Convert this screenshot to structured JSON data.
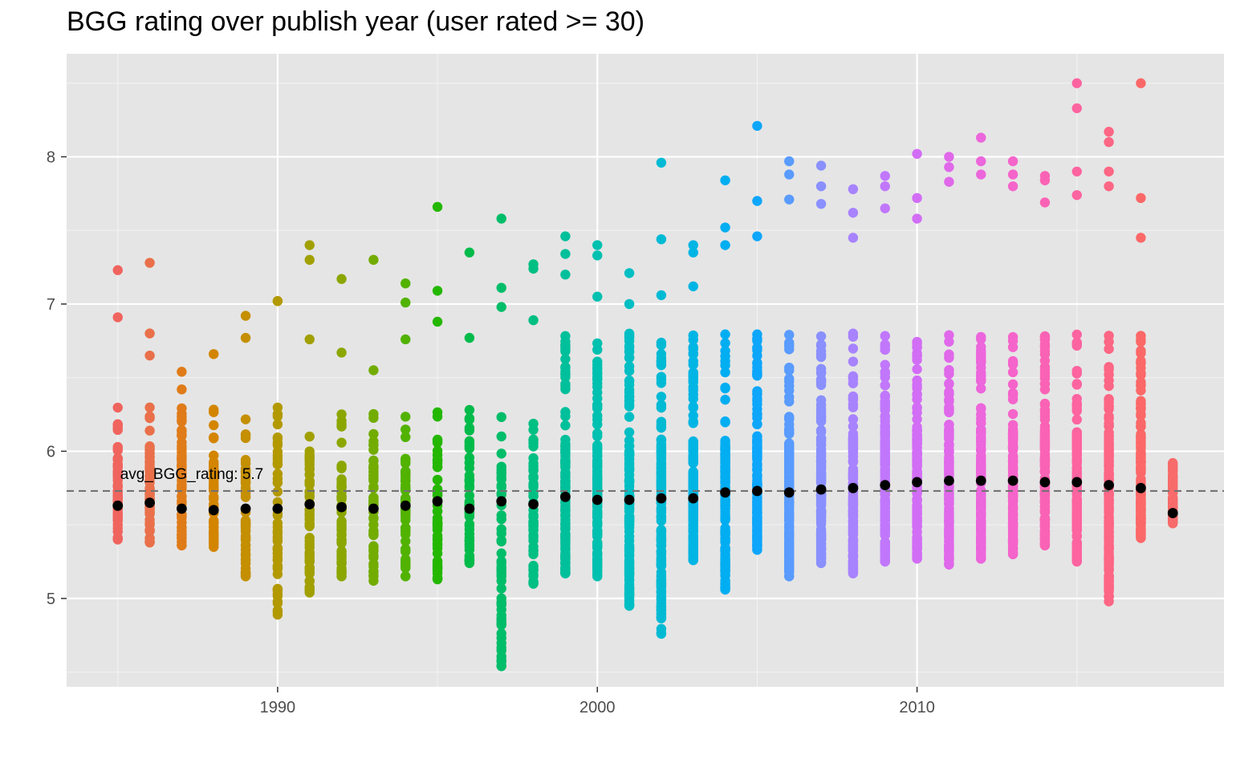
{
  "chart_data": {
    "type": "scatter",
    "title": "BGG rating over publish year (user rated >= 30)",
    "xlabel": "",
    "ylabel": "",
    "xlim": [
      1983.4,
      2019.6
    ],
    "ylim": [
      4.4,
      8.7
    ],
    "x_ticks": [
      1990,
      2000,
      2010
    ],
    "y_ticks": [
      5,
      6,
      7,
      8
    ],
    "grid": true,
    "background": "#e5e5e5",
    "reference_line": {
      "y": 5.73,
      "style": "dashed",
      "color": "#737373"
    },
    "annotation": {
      "text": "avg_BGG_rating:  5.7",
      "x": 1985,
      "y": 5.85
    },
    "years": [
      1985,
      1986,
      1987,
      1988,
      1989,
      1990,
      1991,
      1992,
      1993,
      1994,
      1995,
      1996,
      1997,
      1998,
      1999,
      2000,
      2001,
      2002,
      2003,
      2004,
      2005,
      2006,
      2007,
      2008,
      2009,
      2010,
      2011,
      2012,
      2013,
      2014,
      2015,
      2016,
      2017,
      2018
    ],
    "colors": [
      "#f0645e",
      "#e9704a",
      "#df7b18",
      "#d38500",
      "#c48f00",
      "#b39900",
      "#a1a000",
      "#8ca600",
      "#72ac00",
      "#52b200",
      "#24b700",
      "#00bb4a",
      "#00bd69",
      "#00bf83",
      "#00c09b",
      "#00c0b0",
      "#00bec3",
      "#00bad4",
      "#00b5e4",
      "#00aef1",
      "#0da6fb",
      "#599bff",
      "#8a90ff",
      "#a883ff",
      "#c177fc",
      "#d26df5",
      "#e068ea",
      "#ec66dc",
      "#f564ca",
      "#fa63b5",
      "#fd64a0",
      "#fd6684",
      "#fc6868",
      "#f86b6b"
    ],
    "yearly_avg": [
      5.63,
      5.65,
      5.61,
      5.6,
      5.61,
      5.61,
      5.64,
      5.62,
      5.61,
      5.63,
      5.66,
      5.61,
      5.66,
      5.64,
      5.69,
      5.67,
      5.67,
      5.68,
      5.68,
      5.72,
      5.73,
      5.72,
      5.74,
      5.75,
      5.77,
      5.79,
      5.8,
      5.8,
      5.8,
      5.79,
      5.79,
      5.77,
      5.75,
      5.58
    ],
    "yearly_range": [
      [
        5.4,
        7.23
      ],
      [
        5.38,
        7.28
      ],
      [
        5.36,
        6.54
      ],
      [
        5.35,
        6.66
      ],
      [
        5.15,
        6.92
      ],
      [
        4.89,
        7.02
      ],
      [
        5.04,
        7.4
      ],
      [
        5.15,
        7.17
      ],
      [
        5.12,
        7.3
      ],
      [
        5.15,
        7.14
      ],
      [
        5.13,
        7.66
      ],
      [
        5.24,
        7.35
      ],
      [
        4.54,
        7.58
      ],
      [
        5.1,
        7.27
      ],
      [
        5.17,
        7.46
      ],
      [
        5.15,
        7.4
      ],
      [
        4.95,
        7.21
      ],
      [
        4.76,
        7.96
      ],
      [
        5.26,
        7.4
      ],
      [
        5.06,
        7.84
      ],
      [
        5.33,
        8.21
      ],
      [
        5.15,
        7.97
      ],
      [
        5.24,
        7.94
      ],
      [
        5.17,
        7.78
      ],
      [
        5.25,
        7.87
      ],
      [
        5.27,
        8.02
      ],
      [
        5.23,
        8.0
      ],
      [
        5.27,
        8.13
      ],
      [
        5.3,
        7.97
      ],
      [
        5.36,
        7.87
      ],
      [
        5.25,
        8.5
      ],
      [
        4.98,
        8.17
      ],
      [
        5.41,
        8.5
      ],
      [
        5.51,
        5.92
      ]
    ],
    "outlier_points": [
      [
        1985,
        6.91
      ],
      [
        1986,
        6.8
      ],
      [
        1986,
        6.65
      ],
      [
        1987,
        6.42
      ],
      [
        1989,
        6.77
      ],
      [
        1990,
        7.02
      ],
      [
        1990,
        5.03
      ],
      [
        1991,
        6.76
      ],
      [
        1991,
        7.3
      ],
      [
        1992,
        6.67
      ],
      [
        1993,
        6.55
      ],
      [
        1994,
        6.76
      ],
      [
        1994,
        7.01
      ],
      [
        1995,
        7.09
      ],
      [
        1995,
        6.88
      ],
      [
        1996,
        6.77
      ],
      [
        1997,
        7.11
      ],
      [
        1997,
        6.98
      ],
      [
        1998,
        6.89
      ],
      [
        1998,
        7.24
      ],
      [
        1999,
        7.34
      ],
      [
        1999,
        7.2
      ],
      [
        2000,
        7.33
      ],
      [
        2000,
        7.05
      ],
      [
        2001,
        7.0
      ],
      [
        2001,
        5.16
      ],
      [
        2002,
        7.44
      ],
      [
        2002,
        7.06
      ],
      [
        2002,
        5.1
      ],
      [
        2003,
        7.35
      ],
      [
        2003,
        7.12
      ],
      [
        2004,
        7.52
      ],
      [
        2004,
        7.4
      ],
      [
        2005,
        7.7
      ],
      [
        2005,
        7.46
      ],
      [
        2006,
        7.88
      ],
      [
        2006,
        7.71
      ],
      [
        2007,
        7.8
      ],
      [
        2007,
        7.68
      ],
      [
        2008,
        7.62
      ],
      [
        2008,
        7.45
      ],
      [
        2009,
        7.65
      ],
      [
        2009,
        7.8
      ],
      [
        2010,
        7.72
      ],
      [
        2010,
        7.58
      ],
      [
        2011,
        7.93
      ],
      [
        2011,
        7.83
      ],
      [
        2012,
        7.97
      ],
      [
        2012,
        7.88
      ],
      [
        2013,
        7.88
      ],
      [
        2013,
        7.8
      ],
      [
        2014,
        7.84
      ],
      [
        2014,
        7.69
      ],
      [
        2015,
        8.33
      ],
      [
        2015,
        7.9
      ],
      [
        2015,
        7.74
      ],
      [
        2016,
        8.1
      ],
      [
        2016,
        7.9
      ],
      [
        2016,
        7.8
      ],
      [
        2017,
        7.72
      ],
      [
        2017,
        7.45
      ],
      [
        2018,
        5.88
      ],
      [
        2018,
        5.67
      ]
    ]
  }
}
